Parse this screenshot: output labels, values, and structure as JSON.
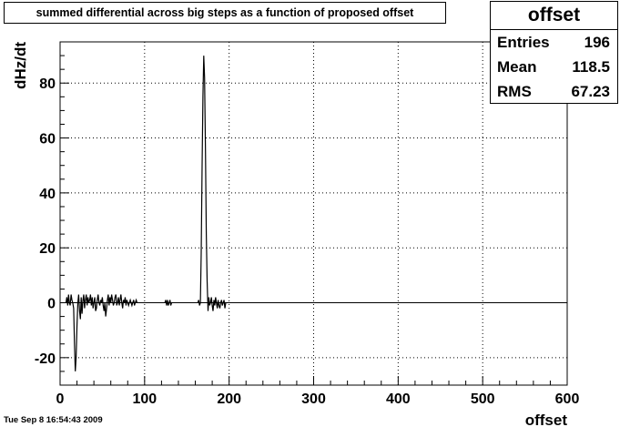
{
  "title": "summed differential across big steps as a function of proposed offset",
  "stats": {
    "name": "offset",
    "rows": [
      {
        "label": "Entries",
        "value": "196"
      },
      {
        "label": "Mean",
        "value": "118.5"
      },
      {
        "label": "RMS",
        "value": "67.23"
      }
    ]
  },
  "footer_timestamp": "Tue Sep  8 16:54:43 2009",
  "chart_data": {
    "type": "line",
    "xlabel": "offset",
    "ylabel": "dHz/dt",
    "xlim": [
      0,
      600
    ],
    "ylim": [
      -30,
      95
    ],
    "xticks": [
      0,
      100,
      200,
      300,
      400,
      500,
      600
    ],
    "yticks": [
      -20,
      0,
      20,
      40,
      60,
      80
    ],
    "grid": true,
    "series": [
      {
        "segments": [
          [
            [
              7,
              0
            ],
            [
              8,
              2
            ],
            [
              9,
              -1
            ],
            [
              10,
              3
            ],
            [
              11,
              0
            ],
            [
              12,
              -1
            ],
            [
              13,
              3
            ],
            [
              14,
              1
            ],
            [
              15,
              0
            ],
            [
              16,
              -2
            ],
            [
              17,
              -15
            ],
            [
              18,
              -25
            ],
            [
              19,
              -20
            ],
            [
              20,
              -8
            ],
            [
              21,
              0
            ],
            [
              22,
              3
            ],
            [
              23,
              -3
            ],
            [
              24,
              -6
            ],
            [
              25,
              2
            ],
            [
              26,
              -4
            ],
            [
              27,
              1
            ],
            [
              28,
              3
            ],
            [
              29,
              -2
            ],
            [
              30,
              1
            ],
            [
              31,
              3
            ],
            [
              32,
              -1
            ],
            [
              33,
              2
            ],
            [
              34,
              0
            ],
            [
              35,
              1
            ],
            [
              36,
              3
            ],
            [
              37,
              -1
            ],
            [
              38,
              2
            ],
            [
              39,
              -2
            ],
            [
              40,
              0
            ],
            [
              41,
              2
            ],
            [
              42,
              -3
            ],
            [
              43,
              -2
            ],
            [
              44,
              1
            ],
            [
              45,
              3
            ],
            [
              46,
              0
            ],
            [
              47,
              -1
            ],
            [
              48,
              1
            ],
            [
              49,
              0
            ],
            [
              50,
              2
            ],
            [
              51,
              -1
            ],
            [
              52,
              -3
            ],
            [
              53,
              0
            ],
            [
              54,
              -5
            ],
            [
              55,
              -2
            ],
            [
              56,
              1
            ],
            [
              57,
              3
            ],
            [
              58,
              -1
            ],
            [
              59,
              2
            ],
            [
              60,
              0
            ],
            [
              61,
              3
            ],
            [
              62,
              1
            ],
            [
              63,
              -1
            ],
            [
              64,
              0
            ],
            [
              65,
              2
            ],
            [
              66,
              3
            ],
            [
              67,
              -1
            ],
            [
              68,
              0
            ],
            [
              69,
              2
            ],
            [
              70,
              -1
            ],
            [
              71,
              1
            ],
            [
              72,
              3
            ],
            [
              73,
              0
            ],
            [
              74,
              -2
            ],
            [
              75,
              1
            ],
            [
              76,
              0
            ],
            [
              77,
              2
            ],
            [
              78,
              -1
            ],
            [
              79,
              1
            ],
            [
              80,
              0
            ],
            [
              81,
              -1
            ],
            [
              82,
              0
            ],
            [
              83,
              1
            ],
            [
              84,
              0
            ],
            [
              85,
              -1
            ],
            [
              86,
              0
            ],
            [
              87,
              1
            ],
            [
              88,
              -1
            ],
            [
              89,
              0
            ],
            [
              90,
              1
            ],
            [
              91,
              0
            ]
          ],
          [
            [
              124,
              0
            ],
            [
              125,
              1
            ],
            [
              126,
              -1
            ],
            [
              127,
              1
            ],
            [
              128,
              -1
            ],
            [
              129,
              0
            ],
            [
              130,
              1
            ],
            [
              131,
              -1
            ],
            [
              132,
              0
            ]
          ],
          [
            [
              163,
              0
            ],
            [
              164,
              1
            ],
            [
              165,
              -1
            ],
            [
              166,
              0
            ],
            [
              167,
              18
            ],
            [
              168,
              50
            ],
            [
              169,
              75
            ],
            [
              170,
              90
            ],
            [
              171,
              82
            ],
            [
              172,
              55
            ],
            [
              173,
              25
            ],
            [
              174,
              8
            ],
            [
              175,
              -3
            ],
            [
              176,
              2
            ],
            [
              177,
              -1
            ],
            [
              178,
              0
            ],
            [
              179,
              2
            ],
            [
              180,
              -1
            ],
            [
              181,
              -3
            ],
            [
              182,
              1
            ],
            [
              183,
              -1
            ],
            [
              184,
              2
            ],
            [
              185,
              0
            ],
            [
              186,
              -2
            ],
            [
              187,
              1
            ],
            [
              188,
              -1
            ],
            [
              189,
              -2
            ],
            [
              190,
              0
            ],
            [
              191,
              1
            ],
            [
              192,
              -1
            ],
            [
              193,
              0
            ],
            [
              194,
              1
            ],
            [
              195,
              -2
            ],
            [
              196,
              0
            ]
          ]
        ]
      }
    ]
  }
}
